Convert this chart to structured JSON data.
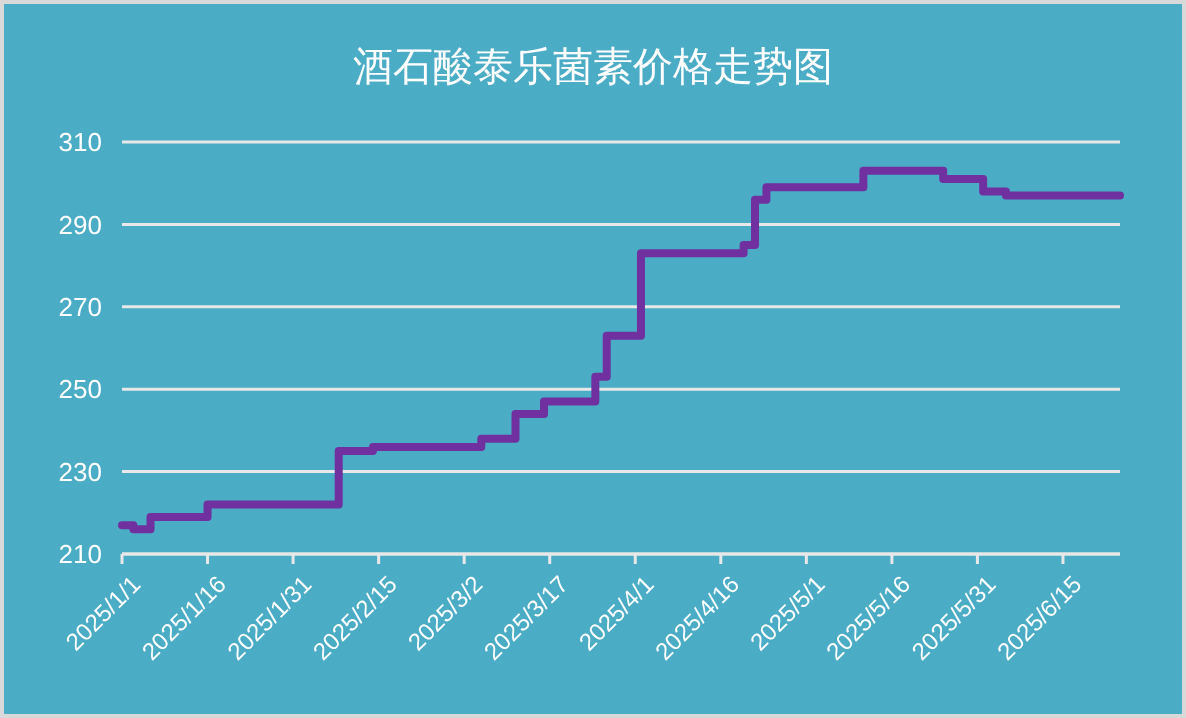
{
  "chart_data": {
    "type": "step",
    "title": "酒石酸泰乐菌素价格走势图",
    "x": [
      "2025-01-01",
      "2025-01-03",
      "2025-01-06",
      "2025-01-16",
      "2025-02-08",
      "2025-02-14",
      "2025-03-05",
      "2025-03-11",
      "2025-03-16",
      "2025-03-25",
      "2025-03-27",
      "2025-04-02",
      "2025-04-20",
      "2025-04-22",
      "2025-04-24",
      "2025-05-11",
      "2025-05-25",
      "2025-06-01",
      "2025-06-05",
      "2025-06-25"
    ],
    "series": [
      {
        "color": "#7030a0",
        "values": [
          217,
          216,
          219,
          222,
          235,
          236,
          238,
          244,
          247,
          253,
          263,
          283,
          285,
          296,
          299,
          303,
          301,
          298,
          297,
          297
        ]
      }
    ],
    "xlim": [
      "2025-01-01",
      "2025-06-25"
    ],
    "xticks": [
      {
        "value": "2025-01-01",
        "label": "2025/1/1"
      },
      {
        "value": "2025-01-16",
        "label": "2025/1/16"
      },
      {
        "value": "2025-01-31",
        "label": "2025/1/31"
      },
      {
        "value": "2025-02-15",
        "label": "2025/2/15"
      },
      {
        "value": "2025-03-02",
        "label": "2025/3/2"
      },
      {
        "value": "2025-03-17",
        "label": "2025/3/17"
      },
      {
        "value": "2025-04-01",
        "label": "2025/4/1"
      },
      {
        "value": "2025-04-16",
        "label": "2025/4/16"
      },
      {
        "value": "2025-05-01",
        "label": "2025/5/1"
      },
      {
        "value": "2025-05-16",
        "label": "2025/5/16"
      },
      {
        "value": "2025-05-31",
        "label": "2025/5/31"
      },
      {
        "value": "2025-06-15",
        "label": "2025/6/15"
      }
    ],
    "ylim": [
      210,
      310
    ],
    "yticks": [
      210,
      230,
      250,
      270,
      290,
      310
    ],
    "grid": "y",
    "marker": "none",
    "line_style": "solid"
  }
}
